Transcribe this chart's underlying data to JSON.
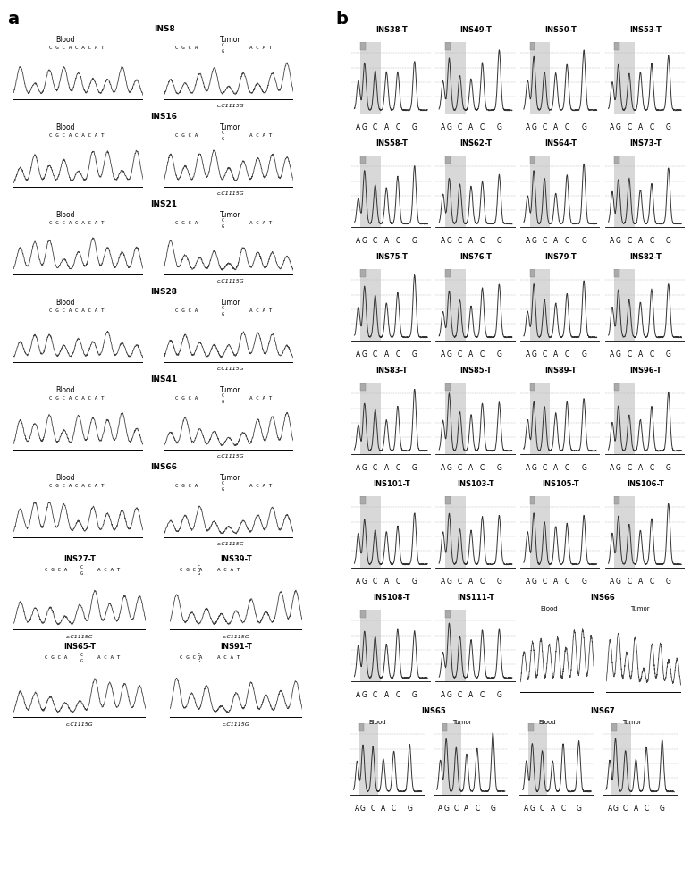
{
  "panel_a_label": "a",
  "panel_b_label": "b",
  "panel_a_samples": [
    {
      "name": "INS8",
      "blood": "Blood",
      "tumor": "Tumor",
      "mutation": "c.C1115G"
    },
    {
      "name": "INS16",
      "blood": "Blood",
      "tumor": "Tumor",
      "mutation": "c.C1115G"
    },
    {
      "name": "INS21",
      "blood": "Blood",
      "tumor": "Tumor",
      "mutation": "c.C1115G"
    },
    {
      "name": "INS28",
      "blood": "Blood",
      "tumor": "Tumor",
      "mutation": "c.C1115G"
    },
    {
      "name": "INS41",
      "blood": "Blood",
      "tumor": "Tumor",
      "mutation": "c.C1115G"
    },
    {
      "name": "INS66",
      "blood": "Blood",
      "tumor": "Tumor",
      "mutation": "c.C1115G"
    }
  ],
  "tumor_only_pairs": [
    [
      "INS27-T",
      "INS39-T"
    ],
    [
      "INS65-T",
      "INS91-T"
    ]
  ],
  "panel_b_rows": [
    [
      "INS38-T",
      "INS49-T",
      "INS50-T",
      "INS53-T"
    ],
    [
      "INS58-T",
      "INS62-T",
      "INS64-T",
      "INS73-T"
    ],
    [
      "INS75-T",
      "INS76-T",
      "INS79-T",
      "INS82-T"
    ],
    [
      "INS83-T",
      "INS85-T",
      "INS89-T",
      "INS96-T"
    ],
    [
      "INS101-T",
      "INS103-T",
      "INS105-T",
      "INS106-T"
    ]
  ],
  "panel_b_row6": [
    "INS108-T",
    "INS111-T"
  ],
  "panel_b_sanger_row6": [
    {
      "name": "INS66",
      "blood": "Blood",
      "tumor": "Tumor"
    }
  ],
  "panel_b_last_row": [
    {
      "name": "INS65",
      "blood": "Blood",
      "tumor": "Tumor"
    },
    {
      "name": "INS67",
      "blood": "Blood",
      "tumor": "Tumor"
    }
  ],
  "xtick_labels": [
    "A",
    "G",
    "C",
    "A",
    "C",
    "G"
  ],
  "blood_seq_full": "C G C A C A C A T",
  "tumor_seq_pre": "C G C A",
  "tumor_seq_post": "A C A T",
  "tumor_seq_c": "C",
  "tumor_seq_g": "G",
  "mutation_label": "c.C1115G",
  "bg_color": "#ffffff",
  "chromatogram_color": "#444444",
  "pyro_color": "#333333",
  "highlight_bg": "#d8d8d8",
  "indicator_color": "#aaaaaa",
  "grid_color": "#bbbbbb",
  "axis_color": "#000000"
}
